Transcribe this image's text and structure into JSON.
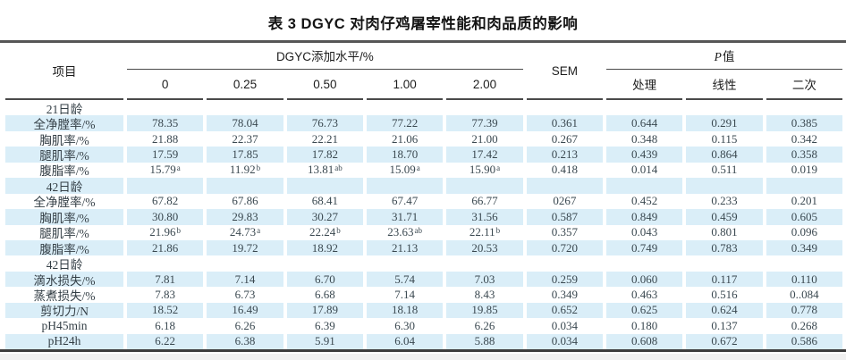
{
  "title": "表 3 DGYC 对肉仔鸡屠宰性能和肉品质的影响",
  "header": {
    "item": "项目",
    "dgyc_group": "DGYC添加水平/%",
    "levels": [
      "0",
      "0.25",
      "0.50",
      "1.00",
      "2.00"
    ],
    "sem": "SEM",
    "p_italic": "P",
    "p_rest": "值",
    "p_cols": [
      "处理",
      "线性",
      "二次"
    ]
  },
  "colors": {
    "shaded_row": "#daeef8",
    "rule": "#4a4a4a",
    "number_text": "#3a4850"
  },
  "table": {
    "rows": [
      {
        "label": "21日龄",
        "section": true,
        "shaded": false,
        "cells": [
          "",
          "",
          "",
          "",
          "",
          "",
          "",
          "",
          ""
        ]
      },
      {
        "label": "全净膛率/%",
        "section": false,
        "shaded": true,
        "cells": [
          "78.35",
          "78.04",
          "76.73",
          "77.22",
          "77.39",
          "0.361",
          "0.644",
          "0.291",
          "0.385"
        ]
      },
      {
        "label": "胸肌率/%",
        "section": false,
        "shaded": false,
        "cells": [
          "21.88",
          "22.37",
          "22.21",
          "21.06",
          "21.00",
          "0.267",
          "0.348",
          "0.115",
          "0.342"
        ]
      },
      {
        "label": "腿肌率/%",
        "section": false,
        "shaded": true,
        "cells": [
          "17.59",
          "17.85",
          "17.82",
          "18.70",
          "17.42",
          "0.213",
          "0.439",
          "0.864",
          "0.358"
        ]
      },
      {
        "label": "腹脂率/%",
        "section": false,
        "shaded": false,
        "cells": [
          "15.79^a",
          "11.92^b",
          "13.81^ab",
          "15.09^a",
          "15.90^a",
          "0.418",
          "0.014",
          "0.511",
          "0.019"
        ]
      },
      {
        "label": "42日龄",
        "section": true,
        "shaded": true,
        "cells": [
          "",
          "",
          "",
          "",
          "",
          "",
          "",
          "",
          ""
        ]
      },
      {
        "label": "全净膛率/%",
        "section": false,
        "shaded": false,
        "cells": [
          "67.82",
          "67.86",
          "68.41",
          "67.47",
          "66.77",
          "0267",
          "0.452",
          "0.233",
          "0.201"
        ]
      },
      {
        "label": "胸肌率/%",
        "section": false,
        "shaded": true,
        "cells": [
          "30.80",
          "29.83",
          "30.27",
          "31.71",
          "31.56",
          "0.587",
          "0.849",
          "0.459",
          "0.605"
        ]
      },
      {
        "label": "腿肌率/%",
        "section": false,
        "shaded": false,
        "cells": [
          "21.96^b",
          "24.73^a",
          "22.24^b",
          "23.63^ab",
          "22.11^b",
          "0.357",
          "0.043",
          "0.801",
          "0.096"
        ]
      },
      {
        "label": "腹脂率/%",
        "section": false,
        "shaded": true,
        "cells": [
          "21.86",
          "19.72",
          "18.92",
          "21.13",
          "20.53",
          "0.720",
          "0.749",
          "0.783",
          "0.349"
        ]
      },
      {
        "label": "42日龄",
        "section": true,
        "shaded": false,
        "cells": [
          "",
          "",
          "",
          "",
          "",
          "",
          "",
          "",
          ""
        ]
      },
      {
        "label": "滴水损失/%",
        "section": false,
        "shaded": true,
        "cells": [
          "7.81",
          "7.14",
          "6.70",
          "5.74",
          "7.03",
          "0.259",
          "0.060",
          "0.117",
          "0.110"
        ]
      },
      {
        "label": "蒸煮损失/%",
        "section": false,
        "shaded": false,
        "cells": [
          "7.83",
          "6.73",
          "6.68",
          "7.14",
          "8.43",
          "0.349",
          "0.463",
          "0.516",
          "0..084"
        ]
      },
      {
        "label": "剪切力/N",
        "section": false,
        "shaded": true,
        "cells": [
          "18.52",
          "16.49",
          "17.89",
          "18.18",
          "19.85",
          "0.652",
          "0.625",
          "0.624",
          "0.778"
        ]
      },
      {
        "label": "pH45min",
        "section": false,
        "shaded": false,
        "cells": [
          "6.18",
          "6.26",
          "6.39",
          "6.30",
          "6.26",
          "0.034",
          "0.180",
          "0.137",
          "0.268"
        ]
      },
      {
        "label": "pH24h",
        "section": false,
        "shaded": true,
        "cells": [
          "6.22",
          "6.38",
          "5.91",
          "6.04",
          "5.88",
          "0.034",
          "0.608",
          "0.672",
          "0.586"
        ]
      }
    ]
  }
}
